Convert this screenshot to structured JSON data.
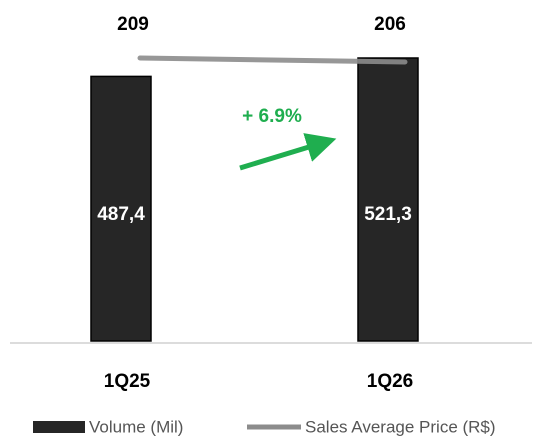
{
  "chart_data": {
    "type": "bar_line",
    "annotation": "+ 6.9%",
    "categories": [
      "1Q25",
      "1Q26"
    ],
    "series": [
      {
        "name": "Volume (Mil)",
        "type": "bar",
        "color": "#262626",
        "values": [
          487.4,
          521.3
        ],
        "value_labels": [
          "487,4",
          "521,3"
        ]
      },
      {
        "name": "Sales Average Price (R$)",
        "type": "line",
        "axis": "y2",
        "color": "#8c8c8c",
        "values": [
          209,
          206
        ]
      }
    ]
  }
}
